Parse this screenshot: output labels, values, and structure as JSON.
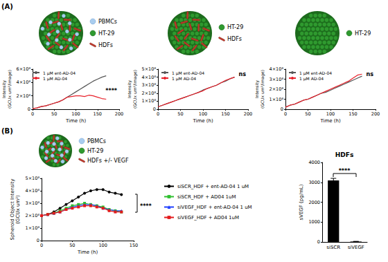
{
  "figure": {
    "panel_labels": [
      "(A)",
      "(B)"
    ],
    "schematics": [
      {
        "pbmc_label": "PBMCs",
        "tumor_label": "HT-29",
        "fibroblast_label": "HDFs"
      },
      {
        "tumor_label": "HT-29",
        "fibroblast_label": "HDFs"
      },
      {
        "tumor_label": "HT-29"
      },
      {
        "pbmc_label": "PBMCs",
        "tumor_label": "HT-29",
        "fibroblast_label": "HDFs +/- VEGF"
      }
    ]
  },
  "chart_data": [
    {
      "type": "line",
      "xlabel": "Time (h)",
      "ylabel": "Intensity\n(GCUx um²/image)",
      "x": [
        0,
        10,
        20,
        30,
        40,
        50,
        60,
        70,
        80,
        90,
        100,
        110,
        120,
        130,
        140,
        150,
        160,
        170
      ],
      "xlim": [
        0,
        200
      ],
      "xticks": [
        0,
        50,
        100,
        150,
        200
      ],
      "ylim": [
        0,
        600000000.0
      ],
      "yticks": [
        0,
        {
          "value": 200000000.0,
          "label": "2×10⁸"
        },
        {
          "value": 400000000.0,
          "label": "4×10⁸"
        },
        {
          "value": 600000000.0,
          "label": "6×10⁸"
        }
      ],
      "series": [
        {
          "name": "1 μM ent-AD-04",
          "color": "#555555",
          "marker": "none",
          "values": [
            10000000.0,
            20000000.0,
            40000000.0,
            50000000.0,
            70000000.0,
            90000000.0,
            110000000.0,
            140000000.0,
            180000000.0,
            220000000.0,
            260000000.0,
            300000000.0,
            340000000.0,
            380000000.0,
            420000000.0,
            450000000.0,
            480000000.0,
            500000000.0
          ]
        },
        {
          "name": "1 μM AD-04",
          "color": "#e8202a",
          "marker": "none",
          "values": [
            10000000.0,
            20000000.0,
            40000000.0,
            50000000.0,
            70000000.0,
            90000000.0,
            110000000.0,
            140000000.0,
            180000000.0,
            190000000.0,
            200000000.0,
            200000000.0,
            190000000.0,
            210000000.0,
            200000000.0,
            180000000.0,
            160000000.0,
            150000000.0
          ]
        }
      ],
      "annotation": "****",
      "legend": "upper left",
      "grid": false
    },
    {
      "type": "line",
      "xlabel": "Time (h)",
      "ylabel": "Intensity\n(GCUx um²/image)",
      "x": [
        0,
        10,
        20,
        30,
        40,
        50,
        60,
        70,
        80,
        90,
        100,
        110,
        120,
        130,
        140,
        150,
        160,
        170
      ],
      "xlim": [
        0,
        200
      ],
      "xticks": [
        0,
        50,
        100,
        150,
        200
      ],
      "ylim": [
        0,
        500000000.0
      ],
      "yticks": [
        0,
        {
          "value": 100000000.0,
          "label": "1×10⁸"
        },
        {
          "value": 200000000.0,
          "label": "2×10⁸"
        },
        {
          "value": 300000000.0,
          "label": "3×10⁸"
        },
        {
          "value": 400000000.0,
          "label": "4×10⁸"
        },
        {
          "value": 500000000.0,
          "label": "5×10⁸"
        }
      ],
      "series": [
        {
          "name": "1 μM ent-AD-04",
          "color": "#555555",
          "marker": "none",
          "values": [
            30000000.0,
            50000000.0,
            70000000.0,
            90000000.0,
            110000000.0,
            130000000.0,
            150000000.0,
            170000000.0,
            190000000.0,
            210000000.0,
            240000000.0,
            260000000.0,
            280000000.0,
            300000000.0,
            330000000.0,
            350000000.0,
            380000000.0,
            400000000.0
          ]
        },
        {
          "name": "1 μM AD-04",
          "color": "#e8202a",
          "marker": "none",
          "values": [
            30000000.0,
            50000000.0,
            70000000.0,
            90000000.0,
            110000000.0,
            130000000.0,
            150000000.0,
            170000000.0,
            190000000.0,
            210000000.0,
            230000000.0,
            260000000.0,
            280000000.0,
            300000000.0,
            330000000.0,
            360000000.0,
            380000000.0,
            400000000.0
          ]
        }
      ],
      "annotation": "ns",
      "legend": "upper left",
      "grid": false
    },
    {
      "type": "line",
      "xlabel": "Time (h)",
      "ylabel": "Intensity\n(GCUx um²/image)",
      "x": [
        0,
        10,
        20,
        30,
        40,
        50,
        60,
        70,
        80,
        90,
        100,
        110,
        120,
        130,
        140,
        150,
        160,
        170
      ],
      "xlim": [
        0,
        200
      ],
      "xticks": [
        0,
        50,
        100,
        150,
        200
      ],
      "ylim": [
        0,
        400000000.0
      ],
      "yticks": [
        0,
        {
          "value": 100000000.0,
          "label": "1×10⁸"
        },
        {
          "value": 200000000.0,
          "label": "2×10⁸"
        },
        {
          "value": 300000000.0,
          "label": "3×10⁸"
        },
        {
          "value": 400000000.0,
          "label": "4×10⁸"
        }
      ],
      "series": [
        {
          "name": "1 μM ent-AD-04",
          "color": "#555555",
          "marker": "none",
          "values": [
            20000000.0,
            40000000.0,
            50000000.0,
            70000000.0,
            90000000.0,
            100000000.0,
            120000000.0,
            140000000.0,
            160000000.0,
            170000000.0,
            190000000.0,
            210000000.0,
            230000000.0,
            250000000.0,
            270000000.0,
            290000000.0,
            310000000.0,
            330000000.0
          ]
        },
        {
          "name": "1 μM AD-04",
          "color": "#e8202a",
          "marker": "none",
          "values": [
            20000000.0,
            40000000.0,
            50000000.0,
            70000000.0,
            90000000.0,
            100000000.0,
            120000000.0,
            140000000.0,
            160000000.0,
            180000000.0,
            200000000.0,
            220000000.0,
            240000000.0,
            260000000.0,
            280000000.0,
            310000000.0,
            340000000.0,
            350000000.0
          ]
        }
      ],
      "annotation": "ns",
      "legend": "upper left",
      "grid": false
    },
    {
      "type": "line",
      "xlabel": "Time (h)",
      "ylabel": "Spheroid Object Intensity\n(GCUx um²)",
      "x": [
        0,
        10,
        20,
        30,
        40,
        50,
        60,
        70,
        80,
        90,
        100,
        110,
        120,
        130
      ],
      "xlim": [
        0,
        150
      ],
      "xticks": [
        0,
        50,
        100,
        150
      ],
      "ylim": [
        0,
        500000000.0
      ],
      "yticks": [
        0,
        {
          "value": 100000000.0,
          "label": "1×10⁸"
        },
        {
          "value": 200000000.0,
          "label": "2×10⁸"
        },
        {
          "value": 300000000.0,
          "label": "3×10⁸"
        },
        {
          "value": 400000000.0,
          "label": "4×10⁸"
        },
        {
          "value": 500000000.0,
          "label": "5×10⁸"
        }
      ],
      "series": [
        {
          "name": "siSCR_HDF + ent-AD-04 1 uM",
          "color": "#000000",
          "marker": "circle",
          "values": [
            200000000.0,
            210000000.0,
            230000000.0,
            260000000.0,
            290000000.0,
            320000000.0,
            350000000.0,
            380000000.0,
            400000000.0,
            410000000.0,
            410000000.0,
            390000000.0,
            380000000.0,
            370000000.0
          ]
        },
        {
          "name": "siSCR_HDF + AD04 1uM",
          "color": "#2fbf2f",
          "marker": "square",
          "values": [
            200000000.0,
            210000000.0,
            220000000.0,
            240000000.0,
            260000000.0,
            280000000.0,
            290000000.0,
            300000000.0,
            290000000.0,
            280000000.0,
            270000000.0,
            250000000.0,
            240000000.0,
            230000000.0
          ]
        },
        {
          "name": "siVEGF_HDF + ent-AD-04 1 uM",
          "color": "#1f3fff",
          "marker": "triangle",
          "values": [
            200000000.0,
            210000000.0,
            220000000.0,
            230000000.0,
            250000000.0,
            270000000.0,
            280000000.0,
            290000000.0,
            290000000.0,
            280000000.0,
            260000000.0,
            250000000.0,
            240000000.0,
            240000000.0
          ]
        },
        {
          "name": "siVEGF_HDF + AD04 1uM",
          "color": "#e31a1c",
          "marker": "square",
          "values": [
            200000000.0,
            210000000.0,
            220000000.0,
            230000000.0,
            250000000.0,
            260000000.0,
            270000000.0,
            280000000.0,
            280000000.0,
            270000000.0,
            260000000.0,
            240000000.0,
            230000000.0,
            230000000.0
          ]
        }
      ],
      "annotation": "****",
      "legend": "right",
      "grid": false
    },
    {
      "type": "bar",
      "title": "HDFs",
      "ylabel": "sVEGF (pg/mL)",
      "categories": [
        "siSCR",
        "siVEGF"
      ],
      "values": [
        3100,
        20
      ],
      "errors": [
        100,
        10
      ],
      "color": "#000000",
      "ylim": [
        0,
        4000
      ],
      "yticks": [
        0,
        1000,
        2000,
        3000,
        4000
      ],
      "annotation": "****",
      "grid": false
    }
  ]
}
